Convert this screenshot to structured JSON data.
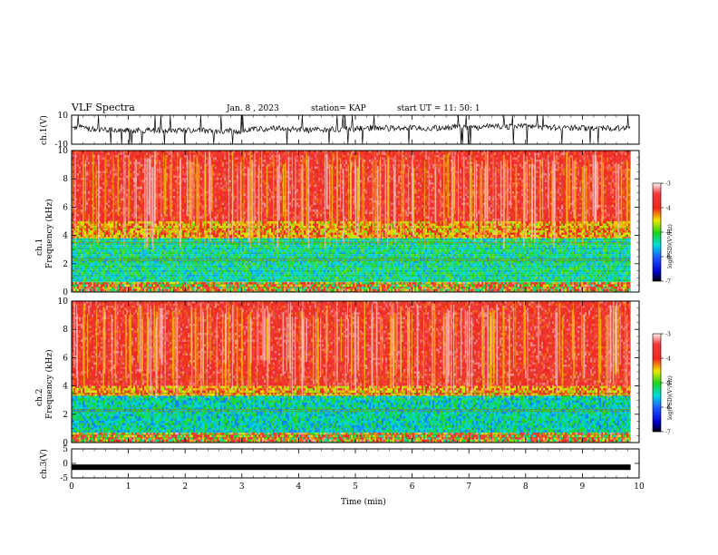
{
  "header": {
    "title": "VLF Spectra",
    "date": "Jan. 8  , 2023",
    "station": "station= KAP",
    "start": "start  UT =   11: 50: 1"
  },
  "chart_data": [
    {
      "type": "line",
      "panel": "ch1-waveform",
      "ylabel": "ch.1(V)",
      "ylim": [
        -10,
        10
      ],
      "yticks": [
        "10",
        "-10"
      ],
      "x_range_min": [
        0,
        9.85
      ],
      "series": [
        {
          "values_description_only": false
        }
      ]
    },
    {
      "type": "heatmap",
      "panel": "ch1-spectrogram",
      "ylabel": "ch.1\nFrequency  (kHz)",
      "ylim": [
        0,
        10
      ],
      "yticks": [
        "0",
        "2",
        "4",
        "6",
        "8",
        "10"
      ],
      "x_range_min": [
        0,
        9.85
      ],
      "bands_khz": [
        {
          "from": 0,
          "to": 0.7,
          "level": "mixed"
        },
        {
          "from": 0.7,
          "to": 3.8,
          "level": -5.3
        },
        {
          "from": 3.8,
          "to": 5.0,
          "level": -4.3
        },
        {
          "from": 5.0,
          "to": 10,
          "level": -3.7
        }
      ],
      "colorbar": {
        "label": "log(PSD)(V²/Hz)",
        "min": -7,
        "max": -3,
        "ticks": [
          "-3",
          "-4",
          "-5",
          "-6",
          "-7"
        ]
      }
    },
    {
      "type": "heatmap",
      "panel": "ch2-spectrogram",
      "ylabel": "ch.2\nFrequency  (kHz)",
      "ylim": [
        0,
        10
      ],
      "yticks": [
        "0",
        "2",
        "4",
        "6",
        "8",
        "10"
      ],
      "x_range_min": [
        0,
        9.85
      ],
      "bands_khz": [
        {
          "from": 0,
          "to": 0.7,
          "level": "mixed"
        },
        {
          "from": 0.7,
          "to": 3.3,
          "level": -5.4
        },
        {
          "from": 3.3,
          "to": 4.0,
          "level": -4.3
        },
        {
          "from": 4.0,
          "to": 10,
          "level": -3.7
        }
      ],
      "colorbar": {
        "label": "log(PSD)(V²/Hz)",
        "min": -7,
        "max": -3,
        "ticks": [
          "-3",
          "-4",
          "-5",
          "-6",
          "-7"
        ]
      }
    },
    {
      "type": "line",
      "panel": "ch3-waveform",
      "ylabel": "ch.3(V)",
      "ylim": [
        -5,
        5
      ],
      "yticks": [
        "5",
        "0",
        "-5"
      ],
      "x_range_min": [
        0,
        9.85
      ],
      "mean_value": -1.3
    }
  ],
  "xaxis": {
    "label": "Time  (min)",
    "range": [
      0,
      10
    ],
    "ticks": [
      "0",
      "1",
      "2",
      "3",
      "4",
      "5",
      "6",
      "7",
      "8",
      "9",
      "10"
    ]
  },
  "colors": {
    "red": "#ee2020",
    "yellow": "#f0e000",
    "green": "#22cc22",
    "cyan": "#00dddd",
    "blue": "#1b5cff"
  }
}
